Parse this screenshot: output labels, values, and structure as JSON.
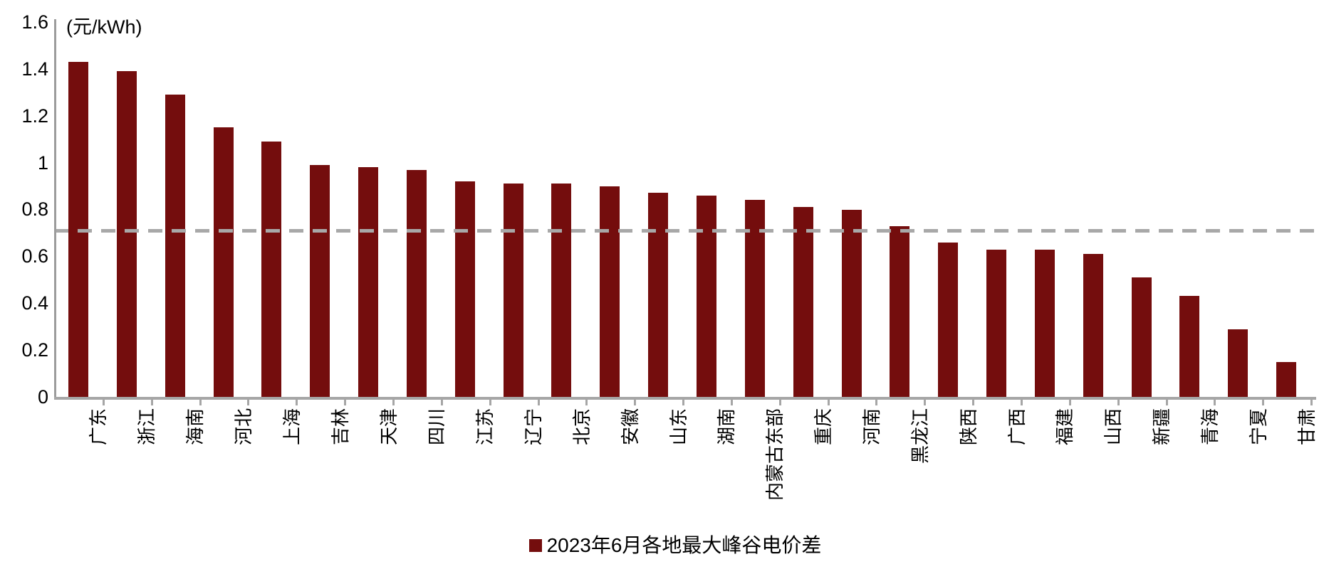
{
  "chart_data": {
    "type": "bar",
    "title": "",
    "unit_label": "(元/kWh)",
    "categories": [
      "广东",
      "浙江",
      "海南",
      "河北",
      "上海",
      "吉林",
      "天津",
      "四川",
      "江苏",
      "辽宁",
      "北京",
      "安徽",
      "山东",
      "湖南",
      "内蒙古东部",
      "重庆",
      "河南",
      "黑龙江",
      "陕西",
      "广西",
      "福建",
      "山西",
      "新疆",
      "青海",
      "宁夏",
      "甘肃"
    ],
    "values": [
      1.43,
      1.39,
      1.29,
      1.15,
      1.09,
      0.99,
      0.98,
      0.97,
      0.92,
      0.91,
      0.91,
      0.9,
      0.87,
      0.86,
      0.84,
      0.81,
      0.8,
      0.73,
      0.66,
      0.63,
      0.63,
      0.61,
      0.51,
      0.43,
      0.29,
      0.15
    ],
    "bar_color": "#740d0d",
    "reference_line": {
      "value": 0.71,
      "color": "#a8a8a8",
      "style": "dashed"
    },
    "y_axis": {
      "min": 0,
      "max": 1.6,
      "tick_step": 0.2,
      "tick_labels": [
        "0",
        "0.2",
        "0.4",
        "0.6",
        "0.8",
        "1",
        "1.2",
        "1.4",
        "1.6"
      ]
    },
    "x_axis": {
      "label_rotation": "vertical-bottom-to-top"
    },
    "grid": false,
    "legend_position": "bottom-center",
    "legend": [
      {
        "label": "2023年6月各地最大峰谷电价差",
        "color": "#740d0d"
      }
    ]
  },
  "colors": {
    "axis": "#9c9c9c",
    "text": "#000000",
    "background": "#ffffff"
  }
}
